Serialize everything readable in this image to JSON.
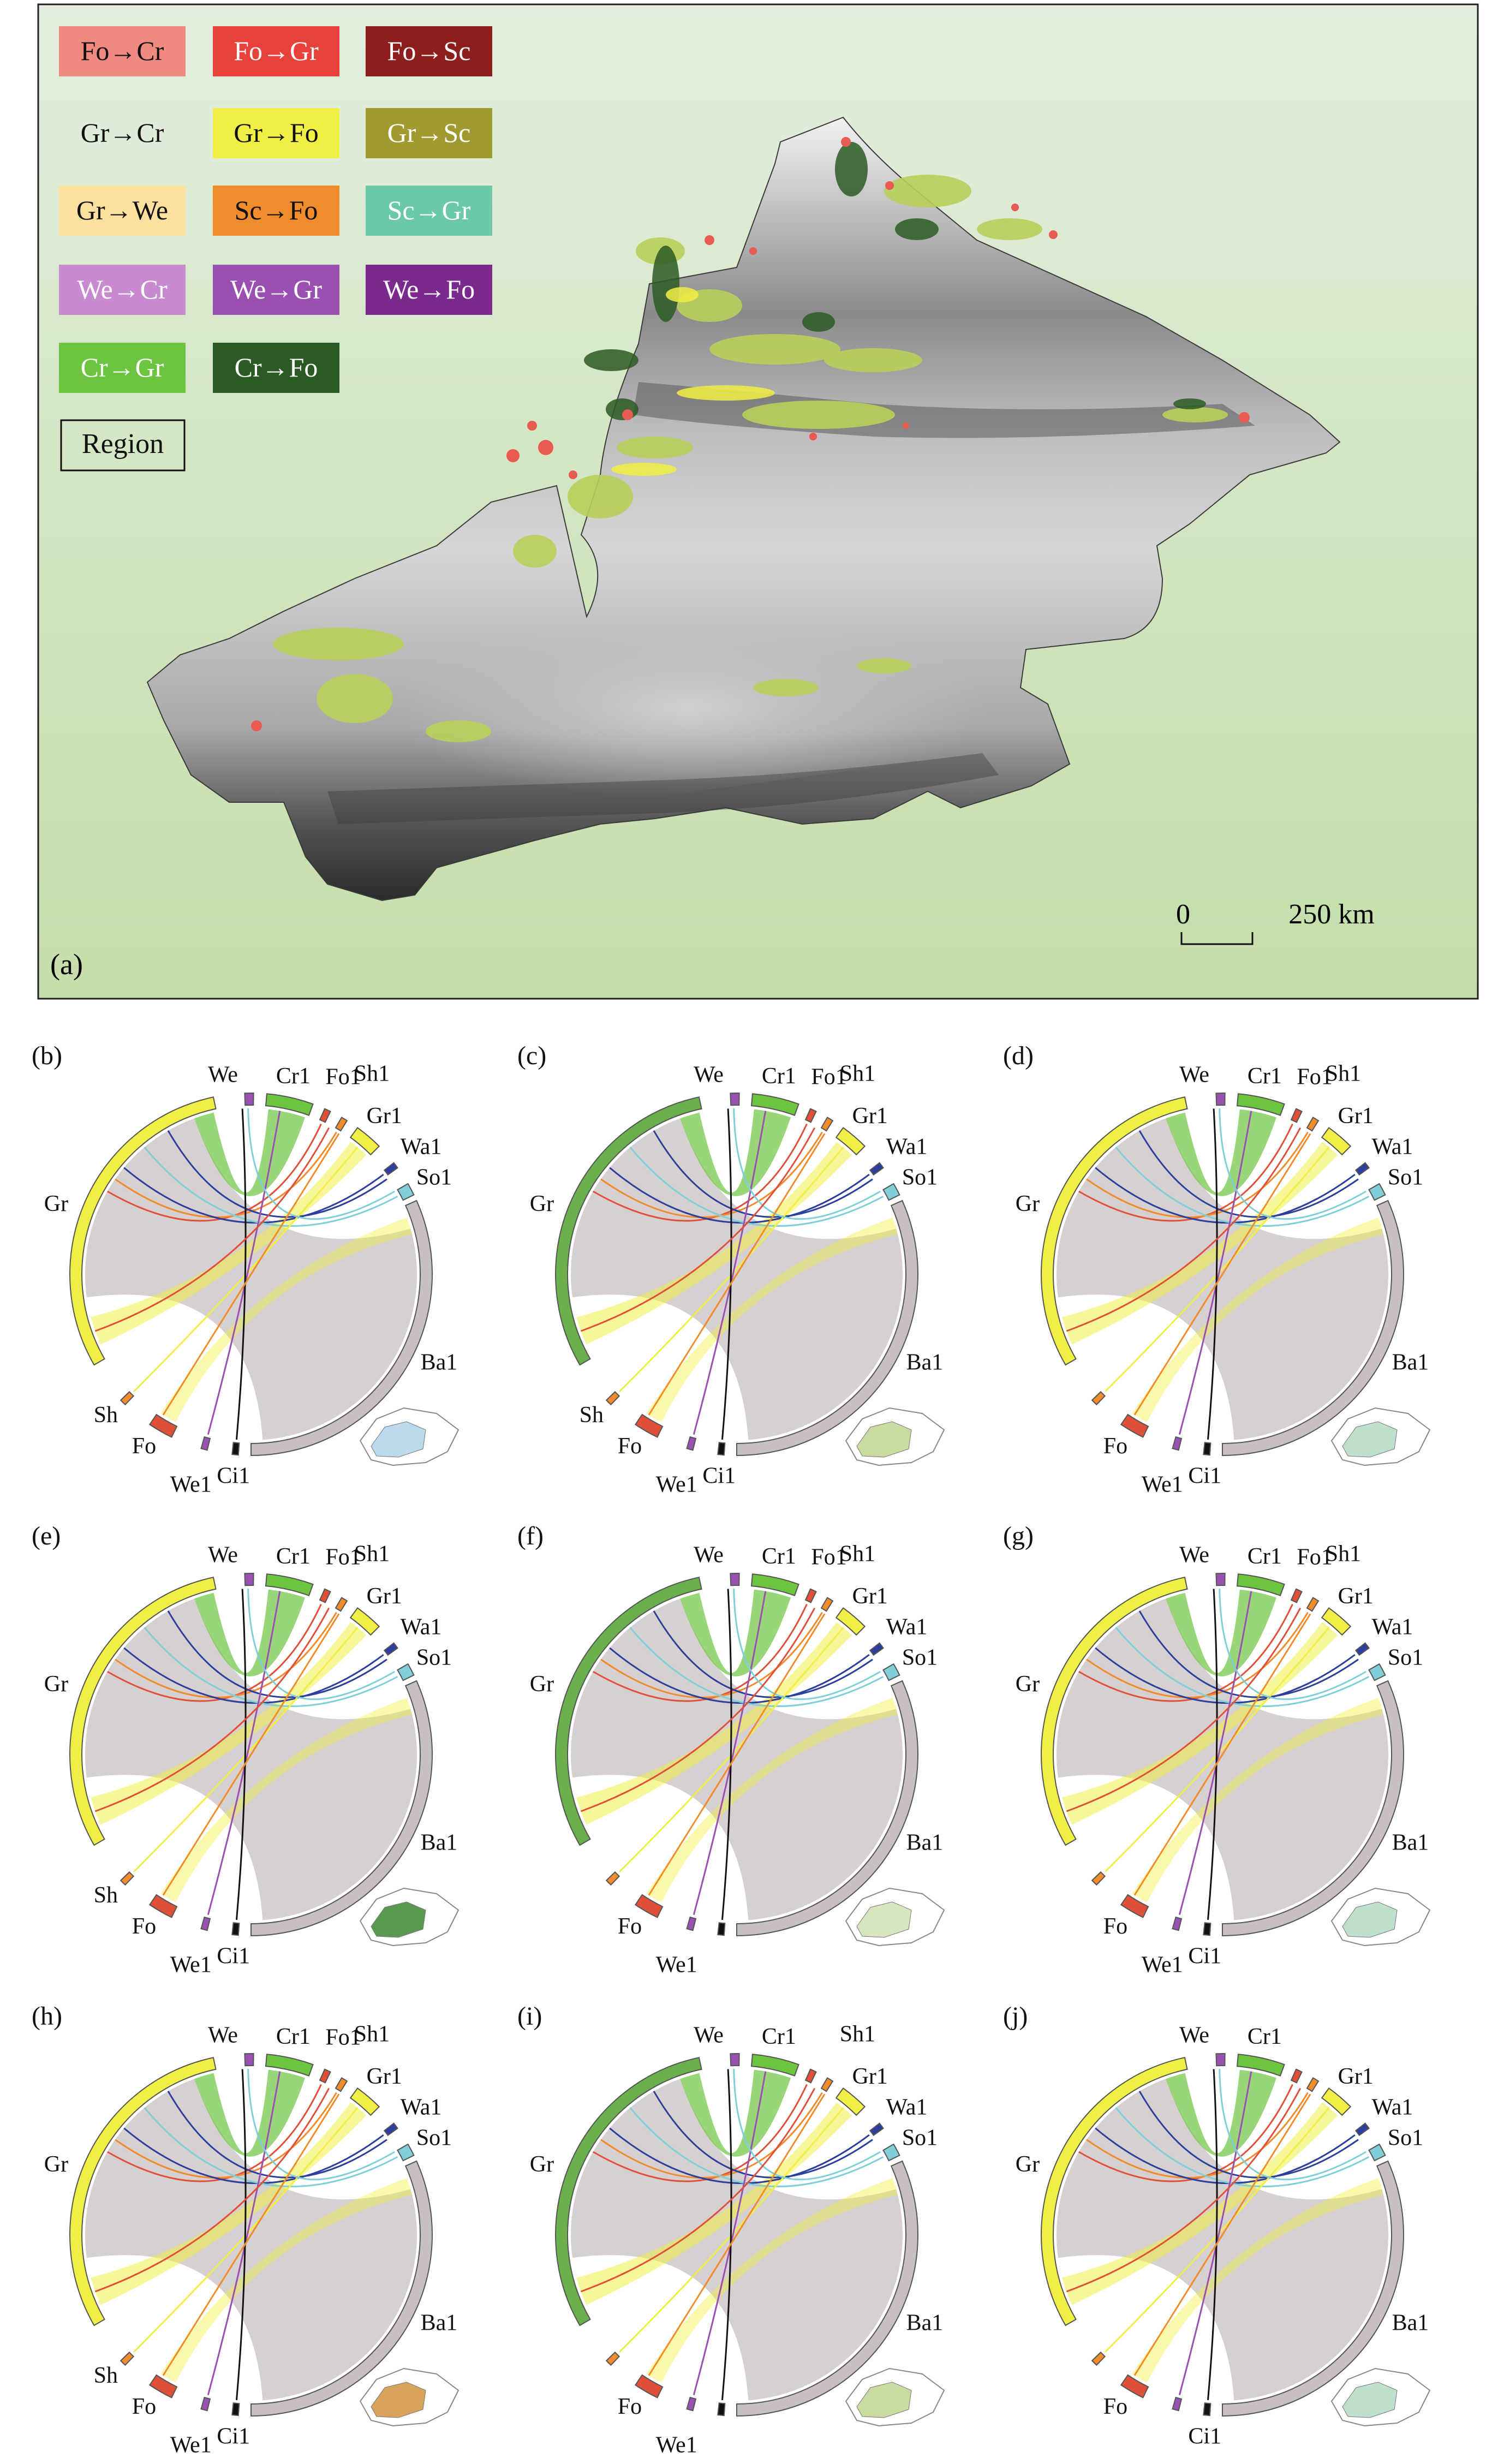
{
  "legend": {
    "items": [
      {
        "label": "Fo→Cr",
        "bg": "#f08a80",
        "fg": "#111111"
      },
      {
        "label": "Fo→Gr",
        "bg": "#e8403a",
        "fg": "#ffffff"
      },
      {
        "label": "Fo→Sc",
        "bg": "#8c1e1e",
        "fg": "#ffffff"
      },
      {
        "label": "Gr→Cr",
        "bg": "transparent",
        "fg": "#111111"
      },
      {
        "label": "Gr→Fo",
        "bg": "#f1ef44",
        "fg": "#111111"
      },
      {
        "label": "Gr→Sc",
        "bg": "#a09a30",
        "fg": "#ffffff"
      },
      {
        "label": "Gr→We",
        "bg": "#fbe0a0",
        "fg": "#111111"
      },
      {
        "label": "Sc→Fo",
        "bg": "#f08c2c",
        "fg": "#111111"
      },
      {
        "label": "Sc→Gr",
        "bg": "#6cc9a8",
        "fg": "#ffffff"
      },
      {
        "label": "We→Cr",
        "bg": "#c98bd0",
        "fg": "#ffffff"
      },
      {
        "label": "We→Gr",
        "bg": "#9a50b0",
        "fg": "#ffffff"
      },
      {
        "label": "We→Fo",
        "bg": "#7a2a8c",
        "fg": "#ffffff"
      },
      {
        "label": "Cr→Gr",
        "bg": "#6cc440",
        "fg": "#ffffff"
      },
      {
        "label": "Cr→Fo",
        "bg": "#2c5a24",
        "fg": "#ffffff"
      }
    ],
    "region_label": "Region"
  },
  "map": {
    "panel_label": "(a)",
    "scale_zero": "0",
    "scale_end": "250 km"
  },
  "colors": {
    "Cr": "#6cc440",
    "Fo": "#e05038",
    "Gr": "#f1ef44",
    "Sh": "#f08c2c",
    "Wa": "#2c3f9c",
    "So": "#7fcfd8",
    "Ba": "#c8c0c0",
    "We": "#9a50b0",
    "Ci": "#111111",
    "grass_dark": "#6ab04c",
    "basemap": "#cfe3b8"
  },
  "panels": [
    {
      "label": "(b)",
      "left": {
        "Gr": "Gr",
        "Sh": "Sh",
        "Fo": "Fo"
      },
      "labels": {
        "We": "We",
        "Cr1": "Cr1",
        "Fo1": "Fo1",
        "Sh1": "Sh1",
        "Gr1": "Gr1",
        "Wa1": "Wa1",
        "So1": "So1",
        "Ba1": "Ba1",
        "We1": "We1",
        "Ci1": "Ci1"
      },
      "region_color": "#bcd9ee"
    },
    {
      "label": "(c)",
      "left": {
        "Gr": "Gr",
        "Sh": "Sh",
        "Fo": "Fo"
      },
      "labels": {
        "We": "We",
        "Cr1": "Cr1",
        "Fo1": "Fo1",
        "Sh1": "Sh1",
        "Gr1": "Gr1",
        "Wa1": "Wa1",
        "So1": "So1",
        "Ba1": "Ba1",
        "We1": "We1",
        "Ci1": "Ci1"
      },
      "region_color": "#c8dca0"
    },
    {
      "label": "(d)",
      "left": {
        "Gr": "Gr",
        "Sh": "",
        "Fo": "Fo"
      },
      "labels": {
        "We": "We",
        "Cr1": "Cr1",
        "Fo1": "Fo1",
        "Sh1": "Sh1",
        "Gr1": "Gr1",
        "Wa1": "Wa1",
        "So1": "So1",
        "Ba1": "Ba1",
        "We1": "We1",
        "Ci1": "Ci1"
      },
      "region_color": "#bfe0cc"
    },
    {
      "label": "(e)",
      "left": {
        "Gr": "Gr",
        "Sh": "Sh",
        "Fo": "Fo"
      },
      "labels": {
        "We": "We",
        "Cr1": "Cr1",
        "Fo1": "Fo1",
        "Sh1": "Sh1",
        "Gr1": "Gr1",
        "Wa1": "Wa1",
        "So1": "So1",
        "Ba1": "Ba1",
        "We1": "We1",
        "Ci1": "Ci1"
      },
      "region_color": "#5a9a50"
    },
    {
      "label": "(f)",
      "left": {
        "Gr": "Gr",
        "Sh": "",
        "Fo": "Fo"
      },
      "labels": {
        "We": "We",
        "Cr1": "Cr1",
        "Fo1": "Fo1",
        "Sh1": "Sh1",
        "Gr1": "Gr1",
        "Wa1": "Wa1",
        "So1": "So1",
        "Ba1": "Ba1",
        "We1": "We1",
        "Ci1": ""
      },
      "region_color": "#d6e6c0"
    },
    {
      "label": "(g)",
      "left": {
        "Gr": "Gr",
        "Sh": "",
        "Fo": "Fo"
      },
      "labels": {
        "We": "We",
        "Cr1": "Cr1",
        "Fo1": "Fo1",
        "Sh1": "Sh1",
        "Gr1": "Gr1",
        "Wa1": "Wa1",
        "So1": "So1",
        "Ba1": "Ba1",
        "We1": "We1",
        "Ci1": "Ci1"
      },
      "region_color": "#bfe0cc"
    },
    {
      "label": "(h)",
      "left": {
        "Gr": "Gr",
        "Sh": "Sh",
        "Fo": "Fo"
      },
      "labels": {
        "We": "We",
        "Cr1": "Cr1",
        "Fo1": "Fo1",
        "Sh1": "Sh1",
        "Gr1": "Gr1",
        "Wa1": "Wa1",
        "So1": "So1",
        "Ba1": "Ba1",
        "We1": "We1",
        "Ci1": "Ci1"
      },
      "region_color": "#d8a45c"
    },
    {
      "label": "(i)",
      "left": {
        "Gr": "Gr",
        "Sh": "",
        "Fo": "Fo"
      },
      "labels": {
        "We": "We",
        "Cr1": "Cr1",
        "Fo1": "",
        "Sh1": "Sh1",
        "Gr1": "Gr1",
        "Wa1": "Wa1",
        "So1": "So1",
        "Ba1": "Ba1",
        "We1": "We1",
        "Ci1": ""
      },
      "region_color": "#c8dca0"
    },
    {
      "label": "(j)",
      "left": {
        "Gr": "Gr",
        "Sh": "",
        "Fo": "Fo"
      },
      "labels": {
        "We": "We",
        "Cr1": "Cr1",
        "Fo1": "",
        "Sh1": "",
        "Gr1": "Gr1",
        "Wa1": "Wa1",
        "So1": "So1",
        "Ba1": "Ba1",
        "We1": "",
        "Ci1": "Ci1"
      },
      "region_color": "#bfe0cc"
    }
  ]
}
